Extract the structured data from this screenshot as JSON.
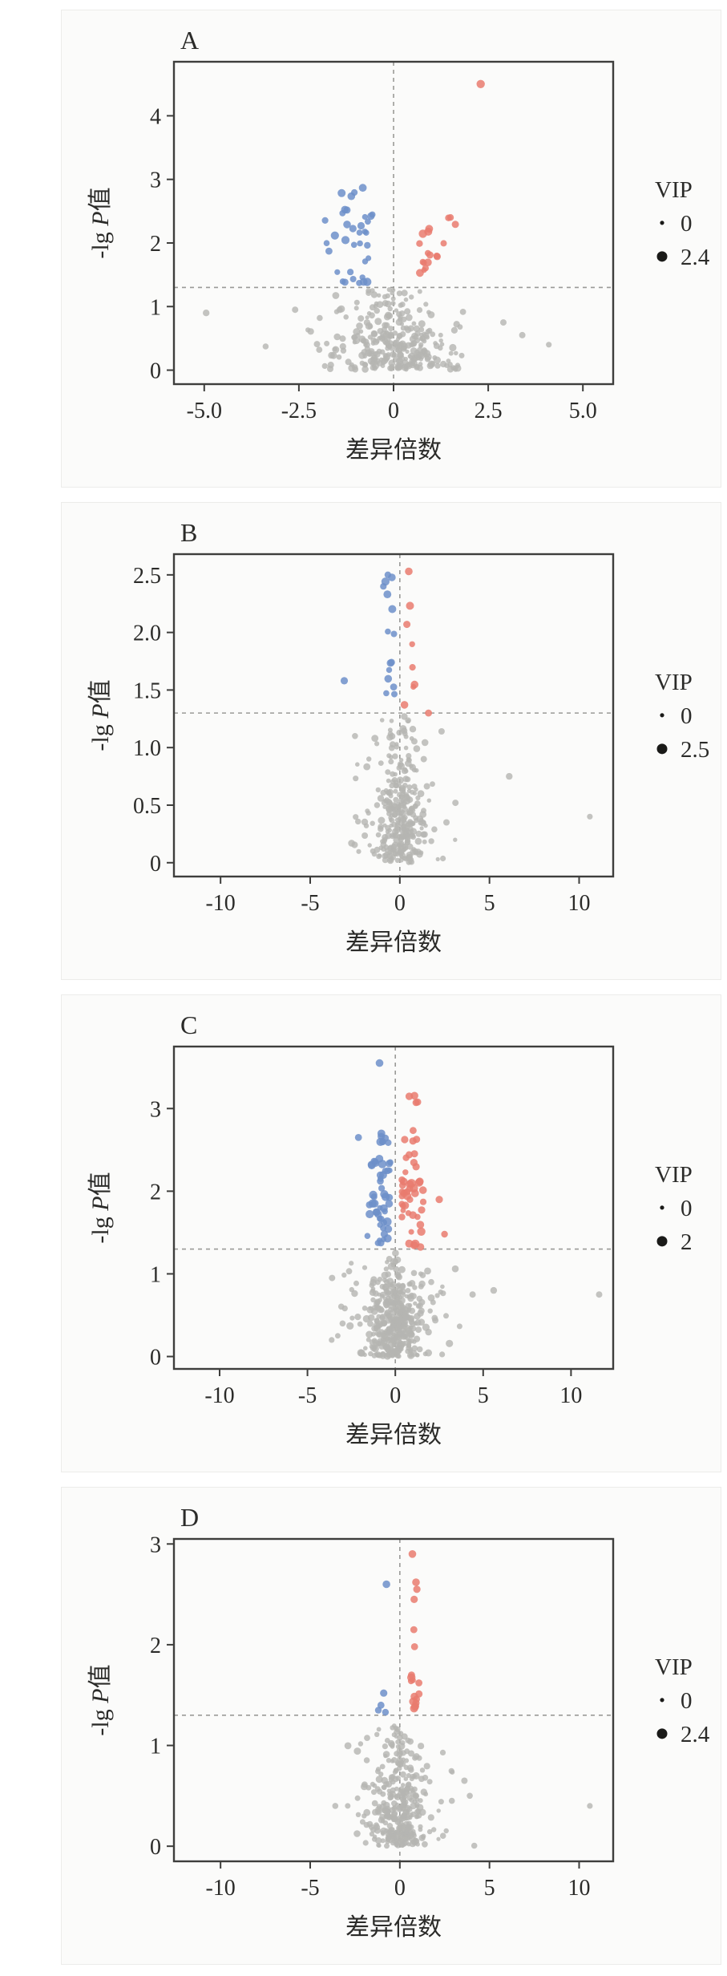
{
  "figure": {
    "panel_labels": [
      "A",
      "B",
      "C",
      "D"
    ],
    "xlabel": "差异倍数",
    "ylabel_parts": {
      "pre": "-lg ",
      "italic": "P",
      "post": "值"
    }
  },
  "style": {
    "axis_color": "#3e3e3c",
    "text_color": "#2b2b29",
    "dash_color": "#9a9a97",
    "up_color": "#e97b6f",
    "down_color": "#6d8fc9",
    "ns_color": "#b5b5b2",
    "legend_dot_color": "#1a1a18"
  },
  "chart_data": [
    {
      "type": "scatter",
      "label": "A",
      "xlabel": "差异倍数",
      "ylabel": "-lg P值",
      "xlim": [
        -5.8,
        5.8
      ],
      "ylim": [
        -0.22,
        4.85
      ],
      "xticks": [
        -5.0,
        -2.5,
        0,
        2.5,
        5.0
      ],
      "xtick_labels": [
        "-5.0",
        "-2.5",
        "0",
        "2.5",
        "5.0"
      ],
      "yticks": [
        0,
        1,
        2,
        3,
        4
      ],
      "ytick_labels": [
        "0",
        "1",
        "2",
        "3",
        "4"
      ],
      "threshold_y": 1.3,
      "threshold_x": 0,
      "legend": {
        "title": "VIP",
        "min_label": "0",
        "max_label": "2.4"
      },
      "seed": 11,
      "clusters": [
        {
          "role": "ns",
          "funnel": true,
          "n": 280,
          "sd": 0.85,
          "ymax": 1.27,
          "r": [
            2.6,
            4.6
          ]
        },
        {
          "role": "ns",
          "n": 26,
          "x": [
            -2.3,
            2.3
          ],
          "y": [
            0.35,
            1.22
          ],
          "r": [
            3.0,
            4.6
          ]
        },
        {
          "role": "down",
          "n": 30,
          "x": [
            -1.85,
            -0.55
          ],
          "y": [
            1.32,
            2.5
          ],
          "r": [
            3.4,
            5.4
          ]
        },
        {
          "role": "down",
          "n": 6,
          "x": [
            -1.4,
            -0.75
          ],
          "y": [
            2.5,
            2.92
          ],
          "r": [
            4.0,
            5.2
          ]
        },
        {
          "role": "up",
          "n": 14,
          "x": [
            0.45,
            1.25
          ],
          "y": [
            1.32,
            2.25
          ],
          "r": [
            3.4,
            5.2
          ]
        },
        {
          "role": "up",
          "n": 4,
          "x": [
            1.1,
            1.7
          ],
          "y": [
            1.9,
            2.55
          ],
          "r": [
            3.6,
            4.6
          ]
        }
      ],
      "outliers": [
        {
          "role": "up",
          "x": 2.3,
          "y": 4.5,
          "r": 5.2
        },
        {
          "role": "ns",
          "x": -4.95,
          "y": 0.9,
          "r": 4.2
        },
        {
          "role": "ns",
          "x": -2.6,
          "y": 0.95,
          "r": 4.0
        },
        {
          "role": "ns",
          "x": 2.9,
          "y": 0.75,
          "r": 4.0
        },
        {
          "role": "ns",
          "x": 3.4,
          "y": 0.55,
          "r": 4.0
        },
        {
          "role": "ns",
          "x": 4.1,
          "y": 0.4,
          "r": 3.6
        }
      ]
    },
    {
      "type": "scatter",
      "label": "B",
      "xlabel": "差异倍数",
      "ylabel": "-lg P值",
      "xlim": [
        -12.6,
        11.9
      ],
      "ylim": [
        -0.12,
        2.68
      ],
      "xticks": [
        -10,
        -5,
        0,
        5,
        10
      ],
      "xtick_labels": [
        "-10",
        "-5",
        "0",
        "5",
        "10"
      ],
      "yticks": [
        0,
        0.5,
        1.0,
        1.5,
        2.0,
        2.5
      ],
      "ytick_labels": [
        "0",
        "0.5",
        "1.0",
        "1.5",
        "2.0",
        "2.5"
      ],
      "threshold_y": 1.3,
      "threshold_x": 0,
      "legend": {
        "title": "VIP",
        "min_label": "0",
        "max_label": "2.5"
      },
      "seed": 23,
      "clusters": [
        {
          "role": "ns",
          "funnel": true,
          "n": 300,
          "sd": 0.75,
          "ymax": 1.27,
          "r": [
            2.6,
            4.4
          ]
        },
        {
          "role": "ns",
          "n": 22,
          "x": [
            -2.6,
            2.9
          ],
          "y": [
            0.35,
            1.15
          ],
          "r": [
            3.0,
            4.6
          ]
        },
        {
          "role": "down",
          "n": 15,
          "x": [
            -0.95,
            -0.25
          ],
          "y": [
            1.45,
            2.52
          ],
          "r": [
            3.6,
            5.2
          ]
        },
        {
          "role": "up",
          "n": 7,
          "x": [
            0.25,
            0.85
          ],
          "y": [
            1.32,
            2.3
          ],
          "r": [
            3.6,
            5.2
          ]
        }
      ],
      "outliers": [
        {
          "role": "down",
          "x": -3.1,
          "y": 1.58,
          "r": 4.6
        },
        {
          "role": "up",
          "x": 0.5,
          "y": 2.53,
          "r": 4.8
        },
        {
          "role": "up",
          "x": 1.6,
          "y": 1.3,
          "r": 4.4
        },
        {
          "role": "ns",
          "x": 6.1,
          "y": 0.75,
          "r": 4.2
        },
        {
          "role": "ns",
          "x": 10.6,
          "y": 0.4,
          "r": 3.6
        },
        {
          "role": "ns",
          "x": 3.1,
          "y": 0.52,
          "r": 4.0
        },
        {
          "role": "ns",
          "x": 2.6,
          "y": 0.35,
          "r": 4.0
        },
        {
          "role": "ns",
          "x": -2.5,
          "y": 1.1,
          "r": 3.8
        }
      ]
    },
    {
      "type": "scatter",
      "label": "C",
      "xlabel": "差异倍数",
      "ylabel": "-lg P值",
      "xlim": [
        -12.6,
        12.4
      ],
      "ylim": [
        -0.15,
        3.75
      ],
      "xticks": [
        -10,
        -5,
        0,
        5,
        10
      ],
      "xtick_labels": [
        "-10",
        "-5",
        "0",
        "5",
        "10"
      ],
      "yticks": [
        0,
        1,
        2,
        3
      ],
      "ytick_labels": [
        "0",
        "1",
        "2",
        "3"
      ],
      "threshold_y": 1.3,
      "threshold_x": 0,
      "legend": {
        "title": "VIP",
        "min_label": "0",
        "max_label": "2"
      },
      "seed": 37,
      "clusters": [
        {
          "role": "ns",
          "funnel": true,
          "n": 360,
          "sd": 1.0,
          "ymax": 1.27,
          "r": [
            2.6,
            4.6
          ]
        },
        {
          "role": "ns",
          "n": 40,
          "x": [
            -3.4,
            3.9
          ],
          "y": [
            0.35,
            1.15
          ],
          "r": [
            3.0,
            4.8
          ]
        },
        {
          "role": "down",
          "n": 44,
          "x": [
            -1.6,
            -0.25
          ],
          "y": [
            1.32,
            2.35
          ],
          "r": [
            3.4,
            5.4
          ]
        },
        {
          "role": "down",
          "n": 10,
          "x": [
            -1.25,
            -0.4
          ],
          "y": [
            2.35,
            3.0
          ],
          "r": [
            3.8,
            5.2
          ]
        },
        {
          "role": "up",
          "n": 36,
          "x": [
            0.25,
            1.6
          ],
          "y": [
            1.32,
            2.25
          ],
          "r": [
            3.4,
            5.4
          ]
        },
        {
          "role": "up",
          "n": 9,
          "x": [
            0.4,
            1.3
          ],
          "y": [
            2.25,
            2.75
          ],
          "r": [
            3.8,
            5.0
          ]
        },
        {
          "role": "up",
          "n": 4,
          "x": [
            0.6,
            1.3
          ],
          "y": [
            3.0,
            3.3
          ],
          "r": [
            4.2,
            5.0
          ]
        }
      ],
      "outliers": [
        {
          "role": "down",
          "x": -0.9,
          "y": 3.55,
          "r": 4.8
        },
        {
          "role": "down",
          "x": -2.1,
          "y": 2.65,
          "r": 4.4
        },
        {
          "role": "up",
          "x": 2.5,
          "y": 1.9,
          "r": 4.6
        },
        {
          "role": "up",
          "x": 2.8,
          "y": 1.48,
          "r": 4.2
        },
        {
          "role": "ns",
          "x": 11.6,
          "y": 0.75,
          "r": 4.0
        },
        {
          "role": "ns",
          "x": 5.6,
          "y": 0.8,
          "r": 4.2
        },
        {
          "role": "ns",
          "x": 4.4,
          "y": 0.75,
          "r": 4.0
        },
        {
          "role": "ns",
          "x": -3.6,
          "y": 0.95,
          "r": 4.0
        },
        {
          "role": "ns",
          "x": -3.0,
          "y": 0.4,
          "r": 3.8
        }
      ]
    },
    {
      "type": "scatter",
      "label": "D",
      "xlabel": "差异倍数",
      "ylabel": "-lg P值",
      "xlim": [
        -12.6,
        11.9
      ],
      "ylim": [
        -0.15,
        3.05
      ],
      "xticks": [
        -10,
        -5,
        0,
        5,
        10
      ],
      "xtick_labels": [
        "-10",
        "-5",
        "0",
        "5",
        "10"
      ],
      "yticks": [
        0,
        1,
        2,
        3
      ],
      "ytick_labels": [
        "0",
        "1",
        "2",
        "3"
      ],
      "threshold_y": 1.3,
      "threshold_x": 0,
      "legend": {
        "title": "VIP",
        "min_label": "0",
        "max_label": "2.4"
      },
      "seed": 53,
      "clusters": [
        {
          "role": "ns",
          "funnel": true,
          "n": 320,
          "sd": 0.85,
          "ymax": 1.27,
          "r": [
            2.6,
            4.4
          ]
        },
        {
          "role": "ns",
          "n": 28,
          "x": [
            -3.0,
            3.2
          ],
          "y": [
            0.35,
            1.1
          ],
          "r": [
            3.0,
            4.6
          ]
        },
        {
          "role": "up",
          "n": 12,
          "x": [
            0.35,
            1.1
          ],
          "y": [
            1.32,
            1.75
          ],
          "r": [
            3.6,
            5.4
          ]
        }
      ],
      "outliers": [
        {
          "role": "down",
          "x": -0.75,
          "y": 2.6,
          "r": 4.8
        },
        {
          "role": "down",
          "x": -0.9,
          "y": 1.52,
          "r": 4.6
        },
        {
          "role": "down",
          "x": -1.05,
          "y": 1.4,
          "r": 4.4
        },
        {
          "role": "down",
          "x": -1.2,
          "y": 1.35,
          "r": 4.2
        },
        {
          "role": "down",
          "x": -0.8,
          "y": 1.33,
          "r": 4.2
        },
        {
          "role": "up",
          "x": 0.7,
          "y": 2.9,
          "r": 4.8
        },
        {
          "role": "up",
          "x": 0.9,
          "y": 2.62,
          "r": 4.8
        },
        {
          "role": "up",
          "x": 0.95,
          "y": 2.55,
          "r": 4.6
        },
        {
          "role": "up",
          "x": 0.8,
          "y": 2.45,
          "r": 4.6
        },
        {
          "role": "up",
          "x": 0.78,
          "y": 2.15,
          "r": 4.4
        },
        {
          "role": "up",
          "x": 0.82,
          "y": 1.98,
          "r": 4.4
        },
        {
          "role": "up",
          "x": 0.65,
          "y": 1.7,
          "r": 4.4
        },
        {
          "role": "ns",
          "x": 10.6,
          "y": 0.4,
          "r": 3.6
        },
        {
          "role": "ns",
          "x": 3.6,
          "y": 0.65,
          "r": 4.0
        },
        {
          "role": "ns",
          "x": 3.9,
          "y": 0.5,
          "r": 3.8
        },
        {
          "role": "ns",
          "x": -3.6,
          "y": 0.4,
          "r": 3.8
        },
        {
          "role": "ns",
          "x": 2.9,
          "y": 0.45,
          "r": 3.8
        }
      ]
    }
  ]
}
